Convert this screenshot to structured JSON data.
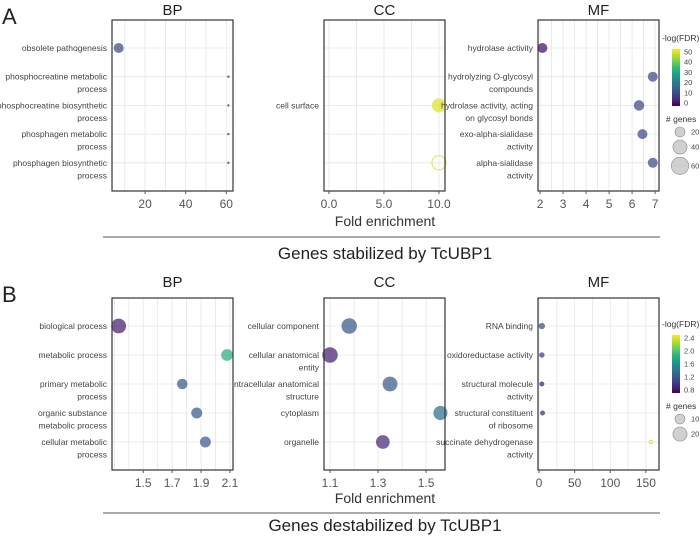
{
  "chart_data": [
    {
      "type": "scatter",
      "panel": "A",
      "group_label": "Genes stabilized by TcUBP1",
      "xlabel": "Fold enrichment",
      "color_legend": {
        "title": "-log(FDR)",
        "ticks": [
          "50",
          "40",
          "30",
          "20",
          "10",
          "0"
        ],
        "range": [
          0,
          55
        ]
      },
      "size_legend": {
        "title": "# genes",
        "values": [
          20,
          40,
          60
        ]
      },
      "facets": [
        {
          "title": "BP",
          "xlim": [
            3.7,
            63.3
          ],
          "ticks": [
            20,
            40,
            60
          ],
          "tick_labels": [
            "20",
            "40",
            "60"
          ],
          "categories": [
            [
              "obsolete pathogenesis"
            ],
            [
              "phosphocreatine metabolic",
              "process"
            ],
            [
              "phosphocreatine biosynthetic",
              "process"
            ],
            [
              "phosphagen metabolic",
              "process"
            ],
            [
              "phosphagen biosynthetic",
              "process"
            ]
          ],
          "points": [
            {
              "row": 0,
              "x": 7,
              "genes": 20,
              "fdr": 12
            },
            {
              "row": 1,
              "x": 61,
              "genes": 1,
              "fdr": 4
            },
            {
              "row": 2,
              "x": 61,
              "genes": 1,
              "fdr": 4
            },
            {
              "row": 3,
              "x": 61,
              "genes": 1,
              "fdr": 4
            },
            {
              "row": 4,
              "x": 61,
              "genes": 1,
              "fdr": 4
            }
          ]
        },
        {
          "title": "CC",
          "xlim": [
            -0.45,
            10.55
          ],
          "ticks": [
            0,
            5,
            10
          ],
          "tick_labels": [
            "0.0",
            "5.0",
            "10.0"
          ],
          "categories": [
            [],
            [],
            [
              "cell surface"
            ],
            [],
            []
          ],
          "points": [
            {
              "row": 2,
              "x": 10,
              "genes": 40,
              "fdr": 52
            },
            {
              "row": 4,
              "x": 10,
              "genes": 40,
              "fdr": 52,
              "open": true
            }
          ]
        },
        {
          "title": "MF",
          "xlim": [
            1.91,
            7.17
          ],
          "ticks": [
            2,
            3,
            4,
            5,
            6,
            7
          ],
          "tick_labels": [
            "2",
            "3",
            "4",
            "5",
            "6",
            "7"
          ],
          "categories": [
            [
              "hydrolase activity"
            ],
            [
              "hydrolyzing O-glycosyl",
              "compounds"
            ],
            [
              "hydrolase activity, acting",
              "on glycosyl bonds"
            ],
            [
              "exo-alpha-sialidase",
              "activity"
            ],
            [
              "alpha-sialidase",
              "activity"
            ]
          ],
          "points": [
            {
              "row": 0,
              "x": 2.1,
              "genes": 20,
              "fdr": 2
            },
            {
              "row": 1,
              "x": 6.9,
              "genes": 20,
              "fdr": 12
            },
            {
              "row": 2,
              "x": 6.3,
              "genes": 22,
              "fdr": 12
            },
            {
              "row": 3,
              "x": 6.45,
              "genes": 20,
              "fdr": 12
            },
            {
              "row": 4,
              "x": 6.9,
              "genes": 20,
              "fdr": 12
            }
          ]
        }
      ]
    },
    {
      "type": "scatter",
      "panel": "B",
      "group_label": "Genes destabilized by TcUBP1",
      "xlabel": "Fold enrichment",
      "color_legend": {
        "title": "-log(FDR)",
        "ticks": [
          "2.4",
          "2.0",
          "1.6",
          "1.2",
          "0.8"
        ],
        "range": [
          0.7,
          2.5
        ]
      },
      "size_legend": {
        "title": "# genes",
        "values": [
          10,
          20
        ]
      },
      "facets": [
        {
          "title": "BP",
          "xlim": [
            1.284,
            2.121
          ],
          "ticks": [
            1.5,
            1.7,
            1.9,
            2.1
          ],
          "tick_labels": [
            "1.5",
            "1.7",
            "1.9",
            "2.1"
          ],
          "categories": [
            [
              "biological process"
            ],
            [
              "metabolic process"
            ],
            [
              "primary metabolic",
              "process"
            ],
            [
              "organic substance",
              "metabolic process"
            ],
            [
              "cellular metabolic",
              "process"
            ]
          ],
          "points": [
            {
              "row": 0,
              "x": 1.33,
              "genes": 22,
              "fdr": 0.85
            },
            {
              "row": 1,
              "x": 2.08,
              "genes": 14,
              "fdr": 1.8
            },
            {
              "row": 2,
              "x": 1.77,
              "genes": 11,
              "fdr": 1.2
            },
            {
              "row": 3,
              "x": 1.87,
              "genes": 12,
              "fdr": 1.2
            },
            {
              "row": 4,
              "x": 1.93,
              "genes": 12,
              "fdr": 1.2
            }
          ]
        },
        {
          "title": "CC",
          "xlim": [
            1.075,
            1.579
          ],
          "ticks": [
            1.1,
            1.3,
            1.5
          ],
          "tick_labels": [
            "1.1",
            "1.3",
            "1.5"
          ],
          "categories": [
            [
              "cellular component"
            ],
            [
              "cellular anatomical",
              "entity"
            ],
            [
              "intracellular anatomical",
              "structure"
            ],
            [
              "cytoplasm"
            ],
            [
              "organelle"
            ]
          ],
          "points": [
            {
              "row": 0,
              "x": 1.18,
              "genes": 24,
              "fdr": 1.2
            },
            {
              "row": 1,
              "x": 1.1,
              "genes": 24,
              "fdr": 0.85
            },
            {
              "row": 2,
              "x": 1.35,
              "genes": 22,
              "fdr": 1.2
            },
            {
              "row": 3,
              "x": 1.56,
              "genes": 20,
              "fdr": 1.35
            },
            {
              "row": 4,
              "x": 1.32,
              "genes": 19,
              "fdr": 0.9
            }
          ]
        },
        {
          "title": "MF",
          "xlim": [
            -1.4,
            168.4
          ],
          "ticks": [
            0,
            50,
            100,
            150
          ],
          "tick_labels": [
            "0",
            "50",
            "100",
            "150"
          ],
          "categories": [
            [
              "RNA binding"
            ],
            [
              "oxidoreductase activity"
            ],
            [
              "structural molecule",
              "activity"
            ],
            [
              "structural constituent",
              "of ribosome"
            ],
            [
              "succinate dehydrogenase",
              "activity"
            ]
          ],
          "points": [
            {
              "row": 0,
              "x": 4,
              "genes": 4,
              "fdr": 1.1
            },
            {
              "row": 1,
              "x": 4,
              "genes": 3,
              "fdr": 1.0
            },
            {
              "row": 2,
              "x": 4,
              "genes": 2.5,
              "fdr": 0.85
            },
            {
              "row": 3,
              "x": 5,
              "genes": 2.5,
              "fdr": 0.9
            },
            {
              "row": 4,
              "x": 157,
              "genes": 1,
              "fdr": 2.4,
              "open": true
            }
          ]
        }
      ]
    }
  ],
  "colors": {
    "viridis": [
      "#440154",
      "#482878",
      "#3e4989",
      "#31688e",
      "#26828e",
      "#1f9e89",
      "#35b779",
      "#6ece58",
      "#b5de2b",
      "#fde725"
    ],
    "frame": "#333333",
    "grid": "#e6e6e6"
  }
}
